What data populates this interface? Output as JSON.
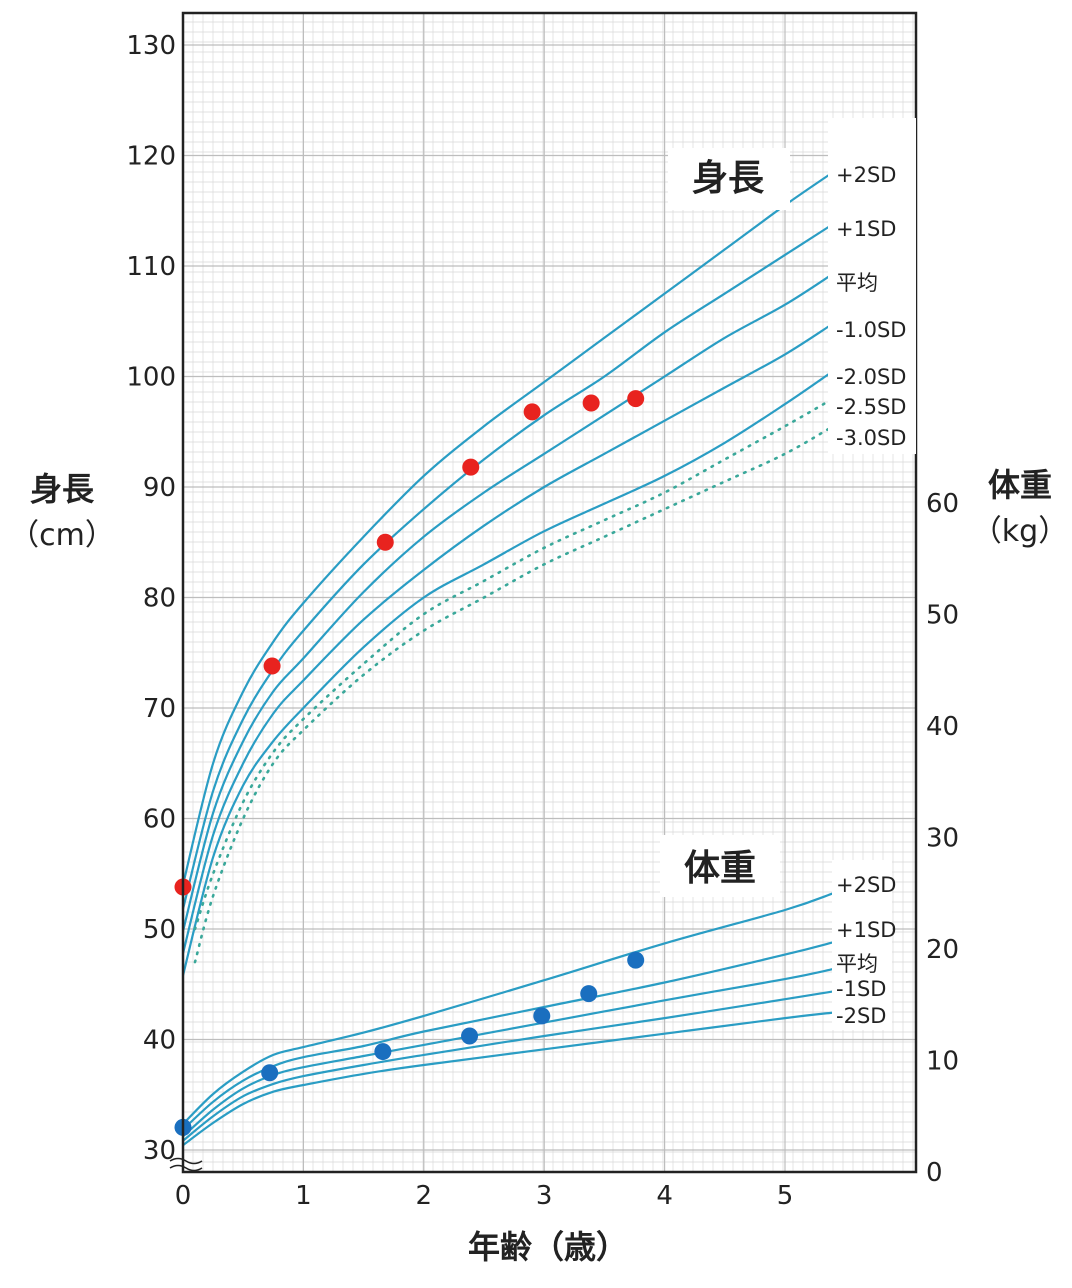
{
  "chart_data": {
    "type": "line",
    "x_label": "年齢（歳）",
    "y_left_label": "身長",
    "y_left_unit": "（cm）",
    "y_right_label": "体重",
    "y_right_unit": "（kg）",
    "y_left_ticks": [
      30,
      40,
      50,
      60,
      70,
      80,
      90,
      100,
      110,
      120,
      130
    ],
    "y_right_ticks": [
      0,
      10,
      20,
      30,
      40,
      50,
      60
    ],
    "x_ticks": [
      0,
      1,
      2,
      3,
      4,
      5
    ],
    "xlim": [
      0,
      6.1
    ],
    "ylim_left": [
      28,
      132
    ],
    "ylim_right": [
      0,
      94
    ],
    "grid": true,
    "colors": {
      "curve": "#2a9dc4",
      "dotted": "#3aa89a",
      "height_points": "#e8231f",
      "weight_points": "#1a6fbf",
      "grid": "#d9d9d9",
      "axis": "#222222"
    },
    "height_panel_title": "身長",
    "weight_panel_title": "体重",
    "height_curves": [
      {
        "name": "+2SD",
        "style": "solid",
        "x": [
          0,
          0.25,
          0.5,
          0.75,
          1,
          1.5,
          2,
          2.5,
          3,
          3.5,
          4,
          4.5,
          5,
          5.4
        ],
        "y": [
          54.0,
          65.0,
          71.5,
          76.0,
          79.5,
          85.5,
          91.0,
          95.5,
          99.5,
          103.5,
          107.5,
          111.5,
          115.5,
          118.5
        ]
      },
      {
        "name": "+1SD",
        "style": "solid",
        "x": [
          0,
          0.25,
          0.5,
          0.75,
          1,
          1.5,
          2,
          2.5,
          3,
          3.5,
          4,
          4.5,
          5,
          5.4
        ],
        "y": [
          51.8,
          62.5,
          69.0,
          73.5,
          77.0,
          83.0,
          88.0,
          92.5,
          96.5,
          100.0,
          104.0,
          107.5,
          111.0,
          113.8
        ]
      },
      {
        "name": "平均",
        "style": "solid",
        "x": [
          0,
          0.25,
          0.5,
          0.75,
          1,
          1.5,
          2,
          2.5,
          3,
          3.5,
          4,
          4.5,
          5,
          5.4
        ],
        "y": [
          49.8,
          60.5,
          67.0,
          71.5,
          74.5,
          80.5,
          85.5,
          89.5,
          93.0,
          96.5,
          100.0,
          103.5,
          106.5,
          109.3
        ]
      },
      {
        "name": "-1.0SD",
        "style": "solid",
        "x": [
          0,
          0.25,
          0.5,
          0.75,
          1,
          1.5,
          2,
          2.5,
          3,
          3.5,
          4,
          4.5,
          5,
          5.4
        ],
        "y": [
          47.8,
          58.5,
          65.0,
          69.5,
          72.5,
          78.0,
          82.5,
          86.5,
          90.0,
          93.0,
          96.0,
          99.0,
          102.0,
          104.8
        ]
      },
      {
        "name": "-2.0SD",
        "style": "solid",
        "x": [
          0,
          0.25,
          0.5,
          0.75,
          1,
          1.5,
          2,
          2.5,
          3,
          3.5,
          4,
          4.5,
          5,
          5.4
        ],
        "y": [
          45.8,
          56.5,
          63.0,
          67.0,
          70.0,
          75.5,
          80.0,
          83.0,
          86.0,
          88.5,
          91.0,
          94.0,
          97.5,
          100.5
        ]
      },
      {
        "name": "-2.5SD",
        "style": "dotted",
        "x": [
          0.1,
          0.25,
          0.5,
          0.75,
          1,
          1.5,
          2,
          2.5,
          3,
          3.5,
          4,
          4.5,
          5,
          5.4
        ],
        "y": [
          50.0,
          55.0,
          61.5,
          66.0,
          69.0,
          74.0,
          78.5,
          81.5,
          84.5,
          87.0,
          89.5,
          92.5,
          95.5,
          98.0
        ]
      },
      {
        "name": "-3.0SD",
        "style": "dotted",
        "x": [
          0.1,
          0.25,
          0.5,
          0.75,
          1,
          1.5,
          2,
          2.5,
          3,
          3.5,
          4,
          4.5,
          5,
          5.4
        ],
        "y": [
          47.0,
          53.0,
          60.0,
          65.0,
          68.0,
          73.0,
          77.0,
          80.0,
          83.0,
          85.5,
          88.0,
          90.5,
          93.0,
          95.5
        ]
      }
    ],
    "weight_curves": [
      {
        "name": "+2SD",
        "x": [
          0,
          0.25,
          0.5,
          0.75,
          1,
          1.5,
          2,
          3,
          4,
          5,
          5.4
        ],
        "y": [
          4.3,
          7.0,
          9.0,
          10.5,
          11.2,
          12.5,
          14.0,
          17.2,
          20.5,
          23.5,
          25.0
        ]
      },
      {
        "name": "+1SD",
        "x": [
          0,
          0.25,
          0.5,
          0.75,
          1,
          1.5,
          2,
          3,
          4,
          5,
          5.4
        ],
        "y": [
          3.8,
          6.3,
          8.2,
          9.5,
          10.3,
          11.3,
          12.6,
          14.8,
          17.0,
          19.5,
          20.6
        ]
      },
      {
        "name": "平均",
        "x": [
          0,
          0.25,
          0.5,
          0.75,
          1,
          1.5,
          2,
          3,
          4,
          5,
          5.4
        ],
        "y": [
          3.2,
          5.6,
          7.5,
          8.7,
          9.4,
          10.4,
          11.4,
          13.4,
          15.4,
          17.3,
          18.2
        ]
      },
      {
        "name": "-1SD",
        "x": [
          0,
          0.25,
          0.5,
          0.75,
          1,
          1.5,
          2,
          3,
          4,
          5,
          5.4
        ],
        "y": [
          2.8,
          5.0,
          6.8,
          7.9,
          8.6,
          9.6,
          10.5,
          12.2,
          13.8,
          15.5,
          16.2
        ]
      },
      {
        "name": "-2SD",
        "x": [
          0,
          0.25,
          0.5,
          0.75,
          1,
          1.5,
          2,
          3,
          4,
          5,
          5.4
        ],
        "y": [
          2.4,
          4.4,
          6.1,
          7.2,
          7.8,
          8.8,
          9.6,
          11.0,
          12.4,
          13.8,
          14.3
        ]
      }
    ],
    "height_points": {
      "x": [
        0,
        0.74,
        1.68,
        2.39,
        2.9,
        3.39,
        3.76
      ],
      "y": [
        53.8,
        73.8,
        85.0,
        91.8,
        96.8,
        97.6,
        98.0
      ]
    },
    "weight_points": {
      "x": [
        0,
        0.72,
        1.66,
        2.38,
        2.98,
        3.37,
        3.76
      ],
      "y": [
        4.0,
        8.9,
        10.8,
        12.2,
        14.0,
        16.0,
        19.0
      ]
    },
    "height_curve_labels": [
      "+2SD",
      "+1SD",
      "平均",
      "-1.0SD",
      "-2.0SD",
      "-2.5SD",
      "-3.0SD"
    ],
    "weight_curve_labels": [
      "+2SD",
      "+1SD",
      "平均",
      "-1SD",
      "-2SD"
    ]
  }
}
